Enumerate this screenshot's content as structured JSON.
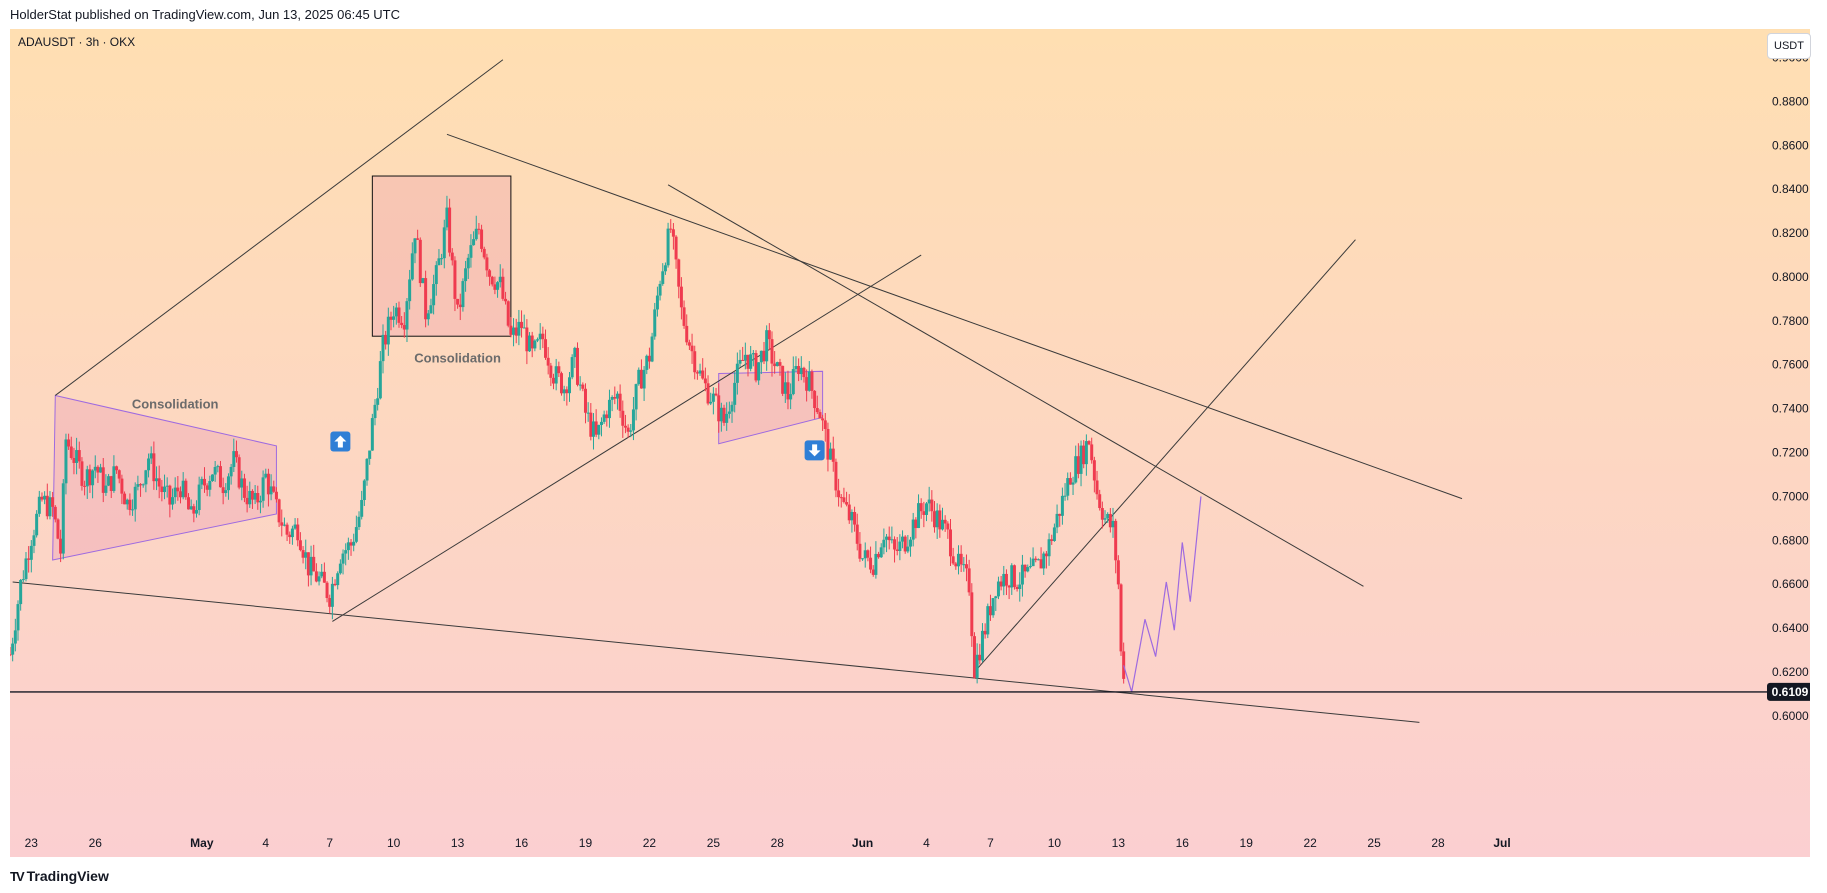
{
  "header": {
    "published_text": "HolderStat published on TradingView.com, Jun 13, 2025 06:45 UTC"
  },
  "symbol_label": "ADAUSDT · 3h · OKX",
  "currency_label": "USDT",
  "footer": {
    "logo_mark": "TV",
    "brand": "TradingView"
  },
  "colors": {
    "bg_top": "#ffdfb2",
    "bg_bottom": "#fbcfd1",
    "up": "#26a69a",
    "down": "#ef3b4f",
    "line": "#3a3a3a",
    "pattern": "#9e6ae0",
    "pattern_fill": "rgba(225,120,175,0.22)",
    "box_fill": "rgba(225,110,160,0.20)",
    "arrow_box": "#2f7fd6",
    "price_tag": "#131722"
  },
  "chart_data": {
    "type": "candlestick",
    "symbol": "ADAUSDT",
    "interval": "3h",
    "exchange": "OKX",
    "x_axis": {
      "start_date": "2025-04-22",
      "end_date": "2025-07-01",
      "tick_labels": [
        {
          "date": "2025-04-23",
          "label": "23"
        },
        {
          "date": "2025-04-26",
          "label": "26"
        },
        {
          "date": "2025-05-01",
          "label": "May"
        },
        {
          "date": "2025-05-04",
          "label": "4"
        },
        {
          "date": "2025-05-07",
          "label": "7"
        },
        {
          "date": "2025-05-10",
          "label": "10"
        },
        {
          "date": "2025-05-13",
          "label": "13"
        },
        {
          "date": "2025-05-16",
          "label": "16"
        },
        {
          "date": "2025-05-19",
          "label": "19"
        },
        {
          "date": "2025-05-22",
          "label": "22"
        },
        {
          "date": "2025-05-25",
          "label": "25"
        },
        {
          "date": "2025-05-28",
          "label": "28"
        },
        {
          "date": "2025-06-01",
          "label": "Jun"
        },
        {
          "date": "2025-06-04",
          "label": "4"
        },
        {
          "date": "2025-06-07",
          "label": "7"
        },
        {
          "date": "2025-06-10",
          "label": "10"
        },
        {
          "date": "2025-06-13",
          "label": "13"
        },
        {
          "date": "2025-06-16",
          "label": "16"
        },
        {
          "date": "2025-06-19",
          "label": "19"
        },
        {
          "date": "2025-06-22",
          "label": "22"
        },
        {
          "date": "2025-06-25",
          "label": "25"
        },
        {
          "date": "2025-06-28",
          "label": "28"
        },
        {
          "date": "2025-07-01",
          "label": "Jul"
        }
      ]
    },
    "y_axis": {
      "ylim": [
        0.594,
        0.913
      ],
      "ticks": [
        "0.9000",
        "0.8800",
        "0.8600",
        "0.8400",
        "0.8200",
        "0.8000",
        "0.7800",
        "0.7600",
        "0.7400",
        "0.7200",
        "0.7000",
        "0.6800",
        "0.6600",
        "0.6400",
        "0.6200",
        "0.6000"
      ]
    },
    "current_price": {
      "value": 0.6109,
      "label": "0.6109"
    },
    "price_path": [
      [
        "2025-04-22T00:00",
        0.628
      ],
      [
        "2025-04-22T12:00",
        0.66
      ],
      [
        "2025-04-23T00:00",
        0.682
      ],
      [
        "2025-04-23T12:00",
        0.698
      ],
      [
        "2025-04-24T00:00",
        0.694
      ],
      [
        "2025-04-24T09:00",
        0.675
      ],
      [
        "2025-04-24T15:00",
        0.726
      ],
      [
        "2025-04-25T00:00",
        0.718
      ],
      [
        "2025-04-25T12:00",
        0.708
      ],
      [
        "2025-04-26T00:00",
        0.714
      ],
      [
        "2025-04-26T12:00",
        0.703
      ],
      [
        "2025-04-27T00:00",
        0.712
      ],
      [
        "2025-04-27T12:00",
        0.697
      ],
      [
        "2025-04-28T00:00",
        0.703
      ],
      [
        "2025-04-28T12:00",
        0.718
      ],
      [
        "2025-04-29T00:00",
        0.705
      ],
      [
        "2025-04-29T12:00",
        0.697
      ],
      [
        "2025-04-30T00:00",
        0.705
      ],
      [
        "2025-04-30T12:00",
        0.69
      ],
      [
        "2025-05-01T00:00",
        0.704
      ],
      [
        "2025-05-01T12:00",
        0.712
      ],
      [
        "2025-05-02T00:00",
        0.706
      ],
      [
        "2025-05-02T12:00",
        0.716
      ],
      [
        "2025-05-03T00:00",
        0.702
      ],
      [
        "2025-05-03T12:00",
        0.696
      ],
      [
        "2025-05-04T00:00",
        0.709
      ],
      [
        "2025-05-04T12:00",
        0.694
      ],
      [
        "2025-05-05T00:00",
        0.683
      ],
      [
        "2025-05-05T12:00",
        0.686
      ],
      [
        "2025-05-06T00:00",
        0.668
      ],
      [
        "2025-05-06T12:00",
        0.662
      ],
      [
        "2025-05-07T00:00",
        0.655
      ],
      [
        "2025-05-07T12:00",
        0.674
      ],
      [
        "2025-05-08T00:00",
        0.678
      ],
      [
        "2025-05-08T12:00",
        0.695
      ],
      [
        "2025-05-09T00:00",
        0.733
      ],
      [
        "2025-05-09T12:00",
        0.768
      ],
      [
        "2025-05-10T00:00",
        0.786
      ],
      [
        "2025-05-10T12:00",
        0.782
      ],
      [
        "2025-05-11T00:00",
        0.822
      ],
      [
        "2025-05-11T12:00",
        0.784
      ],
      [
        "2025-05-12T00:00",
        0.8
      ],
      [
        "2025-05-12T12:00",
        0.826
      ],
      [
        "2025-05-13T00:00",
        0.782
      ],
      [
        "2025-05-13T12:00",
        0.808
      ],
      [
        "2025-05-14T00:00",
        0.822
      ],
      [
        "2025-05-14T12:00",
        0.802
      ],
      [
        "2025-05-15T00:00",
        0.796
      ],
      [
        "2025-05-15T12:00",
        0.772
      ],
      [
        "2025-05-16T00:00",
        0.778
      ],
      [
        "2025-05-16T12:00",
        0.764
      ],
      [
        "2025-05-17T00:00",
        0.772
      ],
      [
        "2025-05-17T12:00",
        0.756
      ],
      [
        "2025-05-18T00:00",
        0.75
      ],
      [
        "2025-05-18T12:00",
        0.762
      ],
      [
        "2025-05-19T00:00",
        0.738
      ],
      [
        "2025-05-19T12:00",
        0.726
      ],
      [
        "2025-05-20T00:00",
        0.74
      ],
      [
        "2025-05-20T12:00",
        0.746
      ],
      [
        "2025-05-21T00:00",
        0.728
      ],
      [
        "2025-05-21T12:00",
        0.752
      ],
      [
        "2025-05-22T00:00",
        0.764
      ],
      [
        "2025-05-22T12:00",
        0.8
      ],
      [
        "2025-05-23T00:00",
        0.822
      ],
      [
        "2025-05-23T12:00",
        0.784
      ],
      [
        "2025-05-24T00:00",
        0.766
      ],
      [
        "2025-05-24T12:00",
        0.752
      ],
      [
        "2025-05-25T00:00",
        0.744
      ],
      [
        "2025-05-25T12:00",
        0.734
      ],
      [
        "2025-05-26T00:00",
        0.752
      ],
      [
        "2025-05-26T12:00",
        0.765
      ],
      [
        "2025-05-27T00:00",
        0.758
      ],
      [
        "2025-05-27T12:00",
        0.77
      ],
      [
        "2025-05-28T00:00",
        0.757
      ],
      [
        "2025-05-28T12:00",
        0.746
      ],
      [
        "2025-05-29T00:00",
        0.76
      ],
      [
        "2025-05-29T12:00",
        0.752
      ],
      [
        "2025-05-30T00:00",
        0.738
      ],
      [
        "2025-05-30T12:00",
        0.716
      ],
      [
        "2025-05-31T00:00",
        0.698
      ],
      [
        "2025-05-31T12:00",
        0.688
      ],
      [
        "2025-06-01T00:00",
        0.672
      ],
      [
        "2025-06-01T12:00",
        0.67
      ],
      [
        "2025-06-02T00:00",
        0.684
      ],
      [
        "2025-06-02T12:00",
        0.674
      ],
      [
        "2025-06-03T00:00",
        0.68
      ],
      [
        "2025-06-03T12:00",
        0.69
      ],
      [
        "2025-06-04T00:00",
        0.697
      ],
      [
        "2025-06-04T12:00",
        0.69
      ],
      [
        "2025-06-05T00:00",
        0.682
      ],
      [
        "2025-06-05T12:00",
        0.668
      ],
      [
        "2025-06-06T00:00",
        0.66
      ],
      [
        "2025-06-06T06:00",
        0.622
      ],
      [
        "2025-06-06T18:00",
        0.64
      ],
      [
        "2025-06-07T06:00",
        0.66
      ],
      [
        "2025-06-07T18:00",
        0.664
      ],
      [
        "2025-06-08T06:00",
        0.662
      ],
      [
        "2025-06-08T18:00",
        0.664
      ],
      [
        "2025-06-09T06:00",
        0.668
      ],
      [
        "2025-06-09T18:00",
        0.678
      ],
      [
        "2025-06-10T06:00",
        0.694
      ],
      [
        "2025-06-10T18:00",
        0.71
      ],
      [
        "2025-06-11T06:00",
        0.718
      ],
      [
        "2025-06-11T15:00",
        0.726
      ],
      [
        "2025-06-12T00:00",
        0.702
      ],
      [
        "2025-06-12T09:00",
        0.69
      ],
      [
        "2025-06-12T18:00",
        0.685
      ],
      [
        "2025-06-13T00:00",
        0.66
      ],
      [
        "2025-06-13T03:00",
        0.628
      ],
      [
        "2025-06-13T06:00",
        0.621
      ]
    ],
    "projection_path": [
      [
        "2025-06-13T06:00",
        0.623
      ],
      [
        "2025-06-13T15:00",
        0.6109
      ],
      [
        "2025-06-14T06:00",
        0.644
      ],
      [
        "2025-06-14T18:00",
        0.627
      ],
      [
        "2025-06-15T06:00",
        0.661
      ],
      [
        "2025-06-15T15:00",
        0.639
      ],
      [
        "2025-06-16T00:00",
        0.679
      ],
      [
        "2025-06-16T09:00",
        0.652
      ],
      [
        "2025-06-16T21:00",
        0.7
      ]
    ],
    "trendlines": [
      {
        "from": [
          "2025-04-22T03:00",
          0.661
        ],
        "to": [
          "2025-06-27T03:00",
          0.597
        ]
      },
      {
        "from": [
          "2025-04-24T03:00",
          0.746
        ],
        "to": [
          "2025-05-15T03:00",
          0.899
        ]
      },
      {
        "from": [
          "2025-05-07T03:00",
          0.643
        ],
        "to": [
          "2025-06-03T18:00",
          0.81
        ]
      },
      {
        "from": [
          "2025-05-12T12:00",
          0.865
        ],
        "to": [
          "2025-06-29T03:00",
          0.699
        ]
      },
      {
        "from": [
          "2025-05-22T21:00",
          0.842
        ],
        "to": [
          "2025-06-24T12:00",
          0.659
        ]
      },
      {
        "from": [
          "2025-06-06T06:00",
          0.62
        ],
        "to": [
          "2025-06-24T03:00",
          0.817
        ]
      }
    ],
    "patterns": [
      {
        "label": "Consolidation",
        "shape": "triangle",
        "points": [
          [
            "2025-04-24T03:00",
            0.746
          ],
          [
            "2025-05-04T12:00",
            0.723
          ],
          [
            "2025-05-04T12:00",
            0.692
          ],
          [
            "2025-04-24T00:00",
            0.671
          ]
        ],
        "label_at": [
          "2025-04-29T18:00",
          0.74
        ]
      },
      {
        "label": "Consolidation",
        "shape": "box",
        "x0": "2025-05-09T00:00",
        "x1": "2025-05-15T12:00",
        "y0": 0.773,
        "y1": 0.846,
        "label_at": [
          "2025-05-13T00:00",
          0.761
        ]
      },
      {
        "label": "",
        "shape": "triangle",
        "points": [
          [
            "2025-05-25T06:00",
            0.756
          ],
          [
            "2025-05-30T03:00",
            0.757
          ],
          [
            "2025-05-30T03:00",
            0.736
          ],
          [
            "2025-05-25T06:00",
            0.724
          ]
        ]
      }
    ],
    "markers": [
      {
        "direction": "up",
        "at": [
          "2025-05-07T12:00",
          0.725
        ]
      },
      {
        "direction": "down",
        "at": [
          "2025-05-29T18:00",
          0.721
        ]
      }
    ]
  }
}
